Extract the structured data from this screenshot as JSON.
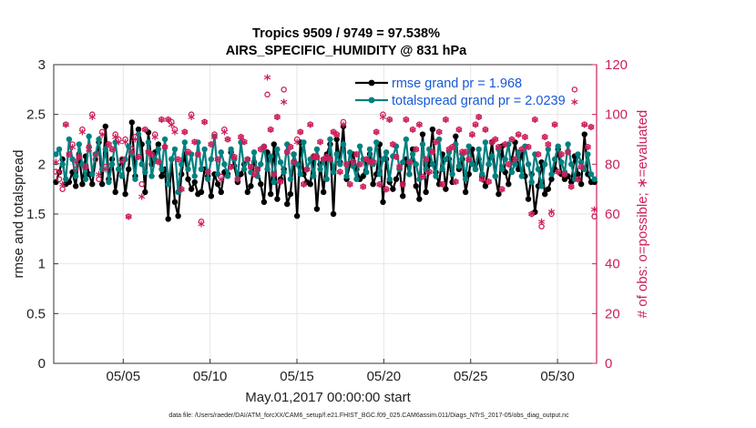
{
  "chart_data": {
    "type": "line",
    "title": "Tropics 9509 / 9749 = 97.538%",
    "subtitle": "AIRS_SPECIFIC_HUMIDITY @ 831 hPa",
    "xlabel": "May.01,2017 00:00:00 start",
    "ylabel": "rmse and totalspread",
    "y2label": "# of obs: o=possible; ∗=evaluated",
    "x_tick_labels": [
      "05/05",
      "05/10",
      "05/15",
      "05/20",
      "05/25",
      "05/30"
    ],
    "x_tick_days": [
      4,
      9,
      14,
      19,
      24,
      29
    ],
    "xlim_days": [
      0,
      31.25
    ],
    "ylim": [
      0,
      3
    ],
    "y_ticks": [
      0,
      0.5,
      1,
      1.5,
      2,
      2.5,
      3
    ],
    "y_tick_labels": [
      "0",
      "0.5",
      "1",
      "1.5",
      "2",
      "2.5",
      "3"
    ],
    "y2lim": [
      0,
      120
    ],
    "y2_ticks": [
      0,
      20,
      40,
      60,
      80,
      100,
      120
    ],
    "y2_tick_labels": [
      "0",
      "20",
      "40",
      "60",
      "80",
      "100",
      "120"
    ],
    "grid": true,
    "legend_position": "top-right",
    "series": [
      {
        "name": "rmse grand pr = 1.968",
        "color": "#000000",
        "axis": "left",
        "values": [
          1.82,
          1.92,
          2.05,
          1.8,
          1.82,
          1.92,
          1.78,
          2.1,
          1.8,
          2.08,
          1.9,
          1.8,
          2.05,
          2.22,
          1.8,
          2.38,
          1.85,
          2.05,
          1.72,
          1.95,
          2.05,
          1.7,
          1.95,
          2.42,
          1.88,
          2.35,
          2.2,
          1.72,
          2.32,
          2.0,
          2.12,
          2.2,
          1.88,
          1.95,
          1.45,
          2.05,
          1.62,
          1.48,
          1.9,
          2.1,
          1.85,
          1.75,
          1.82,
          1.7,
          1.72,
          1.95,
          1.88,
          1.68,
          1.9,
          1.8,
          1.72,
          1.92,
          1.9,
          2.12,
          1.98,
          1.82,
          1.9,
          2.0,
          1.72,
          1.78,
          2.02,
          1.95,
          1.8,
          1.62,
          2.12,
          1.7,
          2.2,
          1.65,
          1.85,
          1.95,
          1.6,
          1.7,
          2.1,
          1.48,
          2.22,
          1.9,
          1.82,
          1.8,
          2.08,
          1.55,
          2.0,
          1.72,
          2.1,
          2.2,
          1.5,
          2.25,
          2.02,
          2.38,
          1.85,
          2.0,
          2.1,
          1.95,
          1.85,
          1.88,
          2.02,
          2.1,
          1.8,
          1.9,
          2.2,
          1.62,
          2.05,
          1.82,
          1.75,
          1.85,
          1.95,
          1.68,
          2.05,
          1.9,
          2.15,
          1.78,
          1.65,
          2.3,
          1.72,
          2.0,
          2.35,
          1.92,
          1.8,
          2.1,
          1.75,
          2.05,
          1.82,
          2.28,
          1.95,
          2.05,
          1.72,
          1.9,
          2.15,
          1.95,
          2.05,
          1.88,
          1.78,
          2.0,
          2.22,
          1.88,
          1.7,
          2.18,
          1.92,
          1.8,
          2.05,
          2.22,
          1.95,
          2.12,
          1.88,
          1.65,
          1.9,
          1.52,
          1.78,
          2.02,
          1.7,
          1.75,
          1.85,
          1.95,
          2.15,
          1.9,
          1.85,
          1.88,
          1.82,
          2.08,
          1.9,
          1.8,
          2.3,
          1.9,
          1.82,
          1.82
        ]
      },
      {
        "name": "totalspread grand pr = 2.0239",
        "color": "#008080",
        "axis": "left",
        "values": [
          2.1,
          2.15,
          2.0,
          1.85,
          2.25,
          2.05,
          1.88,
          2.2,
          2.0,
          1.85,
          2.28,
          1.9,
          2.1,
          2.25,
          1.95,
          2.15,
          1.82,
          2.0,
          2.22,
          1.95,
          1.88,
          2.05,
          2.18,
          2.1,
          1.85,
          2.3,
          2.0,
          1.92,
          2.22,
          1.88,
          2.05,
          2.15,
          1.95,
          2.25,
          1.8,
          2.05,
          2.15,
          1.72,
          2.0,
          2.22,
          1.95,
          2.1,
          1.88,
          2.22,
          1.95,
          2.15,
          1.85,
          2.05,
          2.28,
          1.9,
          2.12,
          2.0,
          1.88,
          2.15,
          2.05,
          1.85,
          2.22,
          1.95,
          2.05,
          1.92,
          2.12,
          1.88,
          2.0,
          2.18,
          1.95,
          2.08,
          1.82,
          2.15,
          2.02,
          1.92,
          2.2,
          1.85,
          2.1,
          2.0,
          1.9,
          2.22,
          1.95,
          2.05,
          1.88,
          2.15,
          1.95,
          2.05,
          1.85,
          2.25,
          1.92,
          2.1,
          2.0,
          2.2,
          1.88,
          2.12,
          1.98,
          1.85,
          2.18,
          2.05,
          1.92,
          2.15,
          2.0,
          2.22,
          1.9,
          2.05,
          2.12,
          1.85,
          2.08,
          2.18,
          1.95,
          2.02,
          2.25,
          1.9,
          2.1,
          2.0,
          1.85,
          2.2,
          1.95,
          2.15,
          2.0,
          1.88,
          2.25,
          1.95,
          2.05,
          2.12,
          1.9,
          2.2,
          1.98,
          2.1,
          1.85,
          2.18,
          2.0,
          1.95,
          2.15,
          1.9,
          2.22,
          2.0,
          2.08,
          1.88,
          2.15,
          1.95,
          2.05,
          2.2,
          1.92,
          2.0,
          2.12,
          1.88,
          2.18,
          2.0,
          1.82,
          2.1,
          1.95,
          1.78,
          2.0,
          2.15,
          1.9,
          2.05,
          2.18,
          2.02,
          1.92,
          2.2,
          2.0,
          1.85,
          2.1,
          2.02,
          1.95,
          2.1,
          1.9,
          1.85
        ]
      },
      {
        "name": "# of obs possible",
        "color": "#cc1f5a",
        "axis": "right",
        "marker": "o",
        "values": [
          77,
          74,
          70,
          96,
          84,
          88,
          78,
          83,
          94,
          79,
          87,
          100,
          82,
          74,
          93,
          79,
          88,
          86,
          92,
          90,
          82,
          90,
          59,
          86,
          91,
          83,
          72,
          94,
          85,
          84,
          92,
          81,
          98,
          87,
          98,
          97,
          94,
          82,
          70,
          93,
          85,
          100,
          89,
          84,
          57,
          97,
          77,
          88,
          92,
          82,
          75,
          94,
          90,
          79,
          83,
          74,
          91,
          89,
          82,
          79,
          76,
          78,
          86,
          87,
          108,
          94,
          76,
          99,
          73,
          110,
          85,
          87,
          81,
          90,
          93,
          72,
          78,
          96,
          83,
          83,
          89,
          82,
          83,
          82,
          93,
          92,
          77,
          97,
          80,
          72,
          81,
          84,
          80,
          71,
          82,
          81,
          81,
          93,
          72,
          100,
          70,
          98,
          88,
          83,
          79,
          72,
          98,
          81,
          94,
          86,
          96,
          75,
          82,
          77,
          85,
          89,
          93,
          72,
          98,
          86,
          87,
          73,
          94,
          85,
          85,
          82,
          92,
          96,
          99,
          74,
          94,
          73,
          89,
          90,
          87,
          70,
          88,
          80,
          90,
          82,
          92,
          86,
          91,
          87,
          60,
          98,
          84,
          55,
          91,
          88,
          60,
          96,
          77,
          84,
          76,
          85,
          71,
          110,
          74,
          79,
          96,
          87,
          95,
          59
        ]
      },
      {
        "name": "# of obs evaluated",
        "color": "#cc1f5a",
        "axis": "right",
        "marker": "*",
        "values": [
          80,
          76,
          71,
          95,
          83,
          86,
          80,
          82,
          92,
          78,
          85,
          98,
          83,
          75,
          91,
          77,
          87,
          85,
          90,
          88,
          80,
          88,
          58,
          84,
          89,
          82,
          66,
          93,
          84,
          83,
          90,
          80,
          97,
          86,
          97,
          95,
          92,
          81,
          69,
          92,
          84,
          98,
          88,
          83,
          55,
          96,
          76,
          87,
          90,
          81,
          73,
          92,
          89,
          78,
          82,
          73,
          90,
          88,
          81,
          78,
          75,
          77,
          85,
          86,
          114,
          93,
          75,
          98,
          72,
          104,
          84,
          86,
          80,
          88,
          92,
          71,
          77,
          95,
          82,
          82,
          88,
          81,
          82,
          81,
          92,
          91,
          76,
          95,
          79,
          71,
          80,
          83,
          79,
          70,
          81,
          80,
          80,
          92,
          71,
          98,
          69,
          97,
          87,
          82,
          78,
          71,
          97,
          80,
          93,
          85,
          95,
          74,
          81,
          76,
          84,
          88,
          92,
          71,
          97,
          85,
          86,
          72,
          93,
          84,
          84,
          81,
          91,
          95,
          98,
          73,
          93,
          72,
          88,
          89,
          86,
          69,
          87,
          79,
          89,
          81,
          91,
          85,
          90,
          86,
          59,
          97,
          83,
          56,
          90,
          87,
          60,
          95,
          76,
          83,
          75,
          84,
          70,
          104,
          73,
          78,
          95,
          86,
          94,
          61
        ]
      }
    ],
    "legend": [
      {
        "label": "rmse grand pr = 1.968",
        "color": "#000000"
      },
      {
        "label": "totalspread grand pr = 2.0239",
        "color": "#008080"
      }
    ],
    "footnote": "data file: /Users/raeder/DAI/ATM_forcXX/CAM6_setup/f.e21.FHIST_BGC.f09_025.CAM6assim.011/Diags_NTrS_2017-05/obs_diag_output.nc"
  },
  "colors": {
    "left_axis": "#222222",
    "right_axis": "#cc1f5a",
    "legend_text": "#1659d6",
    "grid": "#e6e6e6"
  }
}
